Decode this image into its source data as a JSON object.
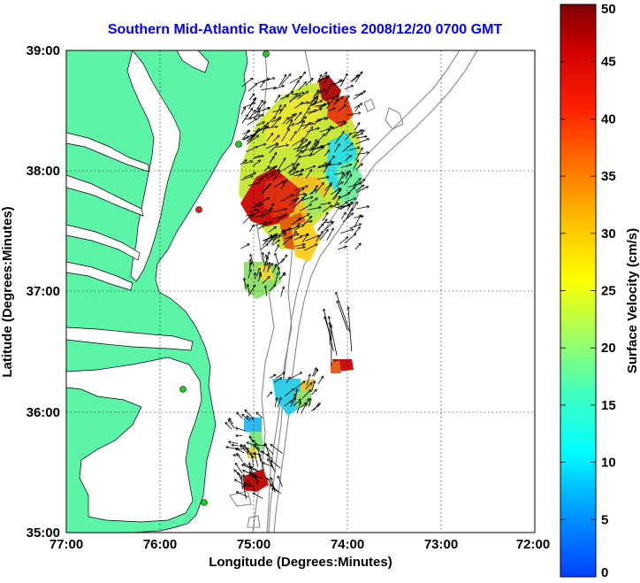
{
  "title": "Southern Mid-Atlantic Raw Velocities 2008/12/20 0700 GMT",
  "x_axis": {
    "label": "Longitude (Degrees:Minutes)",
    "ticks": [
      "77:00",
      "76:00",
      "75:00",
      "74:00",
      "73:00",
      "72:00"
    ]
  },
  "y_axis": {
    "label": "Latitude (Degrees:Minutes)",
    "ticks": [
      "39:00",
      "38:00",
      "37:00",
      "36:00",
      "35:00"
    ]
  },
  "colorbar": {
    "label": "Surface Velocity (cm/s)",
    "ticks": [
      "50",
      "45",
      "40",
      "35",
      "30",
      "25",
      "20",
      "15",
      "10",
      "5",
      "0"
    ],
    "range": [
      0,
      50
    ]
  },
  "colors": {
    "land": "#5cf5a8",
    "title": "#0000ff",
    "station_green": "#22cc22",
    "station_red": "#dd2222"
  },
  "chart_data": {
    "type": "heatmap",
    "title": "Southern Mid-Atlantic Raw Velocities 2008/12/20 0700 GMT",
    "xlabel": "Longitude (Degrees:Minutes)",
    "ylabel": "Latitude (Degrees:Minutes)",
    "xlim": [
      "77:00 W",
      "72:00 W"
    ],
    "ylim": [
      "35:00 N",
      "39:00 N"
    ],
    "grid": true,
    "colorbar_label": "Surface Velocity (cm/s)",
    "colorbar_range": [
      0,
      50
    ]
  }
}
